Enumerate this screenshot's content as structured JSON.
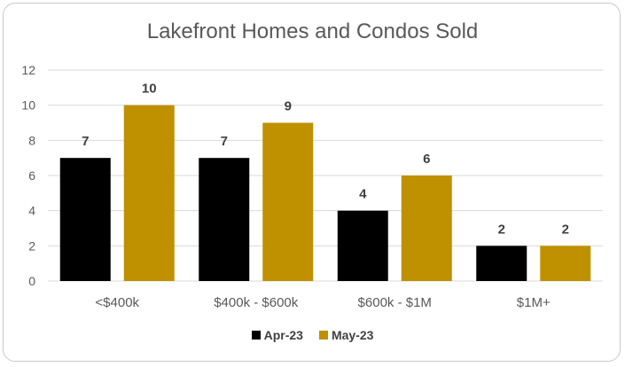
{
  "chart_data": {
    "type": "bar",
    "title": "Lakefront Homes and Condos Sold",
    "categories": [
      "<$400k",
      "$400k - $600k",
      "$600k - $1M",
      "$1M+"
    ],
    "series": [
      {
        "name": "Apr-23",
        "values": [
          7,
          7,
          4,
          2
        ],
        "color": "#000000"
      },
      {
        "name": "May-23",
        "values": [
          10,
          9,
          6,
          2
        ],
        "color": "#bf9000"
      }
    ],
    "ylim": [
      0,
      12
    ],
    "yticks": [
      0,
      2,
      4,
      6,
      8,
      10,
      12
    ],
    "grid": true,
    "data_labels": true,
    "legend_position": "bottom",
    "gridline_color": "#d9d9d9",
    "axis_text_color": "#595959",
    "label_text_color": "#404040"
  }
}
